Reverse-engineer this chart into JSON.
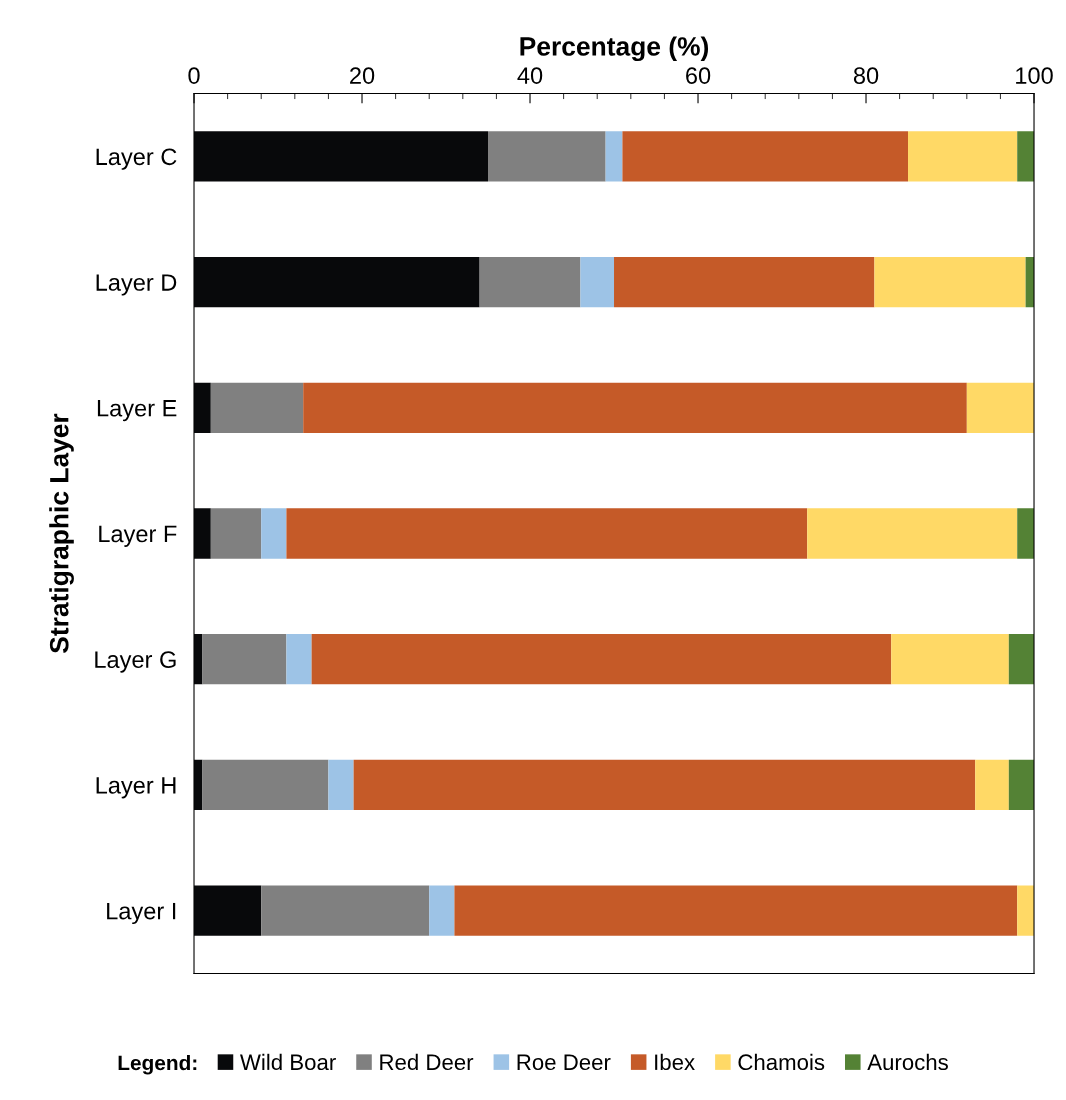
{
  "chart_data": {
    "type": "bar",
    "orientation": "horizontal",
    "stacked": true,
    "xlabel": "Percentage (%)",
    "ylabel": "Stratigraphic Layer",
    "legend_title": "Legend:",
    "categories": [
      "Layer C",
      "Layer D",
      "Layer E",
      "Layer F",
      "Layer G",
      "Layer H",
      "Layer I"
    ],
    "series": [
      {
        "name": "Wild Boar",
        "color": "#08090b",
        "values": [
          35,
          34,
          2,
          2,
          1,
          1,
          8
        ]
      },
      {
        "name": "Red Deer",
        "color": "#808080",
        "values": [
          14,
          12,
          11,
          6,
          10,
          15,
          20
        ]
      },
      {
        "name": "Roe Deer",
        "color": "#9dc3e6",
        "values": [
          2,
          4,
          0,
          3,
          3,
          3,
          3
        ]
      },
      {
        "name": "Ibex",
        "color": "#c55a28",
        "values": [
          34,
          31,
          79,
          62,
          69,
          74,
          67
        ]
      },
      {
        "name": "Chamois",
        "color": "#ffd966",
        "values": [
          13,
          18,
          8,
          25,
          14,
          4,
          2
        ]
      },
      {
        "name": "Aurochs",
        "color": "#548235",
        "values": [
          2,
          1,
          0,
          2,
          3,
          3,
          0
        ]
      }
    ],
    "xlim": [
      0,
      100
    ],
    "xticks": [
      0,
      20,
      40,
      60,
      80,
      100
    ],
    "tick_labels": "x",
    "grid": false,
    "legend": "bottom"
  }
}
